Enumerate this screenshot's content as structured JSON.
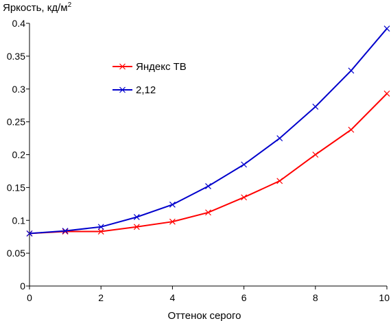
{
  "chart_data": {
    "type": "line",
    "ylabel": "Яркость, кд/м",
    "ylabel_sup": "2",
    "xlabel": "Оттенок серого",
    "xlim": [
      0,
      10
    ],
    "ylim": [
      0,
      0.4
    ],
    "x_ticks": [
      "0",
      "2",
      "4",
      "6",
      "8",
      "10"
    ],
    "y_ticks": [
      "0",
      "0.05",
      "0.1",
      "0.15",
      "0.2",
      "0.25",
      "0.3",
      "0.35",
      "0.4"
    ],
    "grid": false,
    "legend_position": "upper-left-inside",
    "series": [
      {
        "name": "Яндекс ТВ",
        "color": "#ff0000",
        "marker": "x",
        "x": [
          0,
          1,
          2,
          3,
          4,
          5,
          6,
          7,
          8,
          9,
          10
        ],
        "y": [
          0.08,
          0.083,
          0.083,
          0.09,
          0.098,
          0.112,
          0.135,
          0.16,
          0.2,
          0.238,
          0.293
        ]
      },
      {
        "name": "2,12",
        "color": "#0000cc",
        "marker": "x",
        "x": [
          0,
          1,
          2,
          3,
          4,
          5,
          6,
          7,
          8,
          9,
          10
        ],
        "y": [
          0.08,
          0.084,
          0.09,
          0.105,
          0.124,
          0.152,
          0.185,
          0.225,
          0.273,
          0.328,
          0.392
        ]
      }
    ]
  }
}
